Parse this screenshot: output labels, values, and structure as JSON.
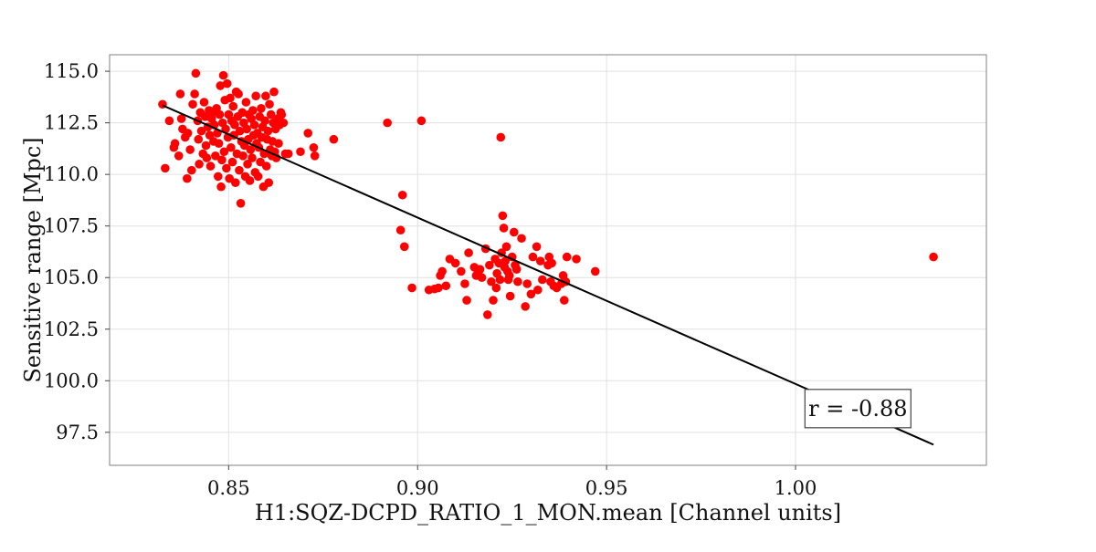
{
  "chart_data": {
    "type": "scatter",
    "title": "",
    "xlabel": "H1:SQZ-DCPD_RATIO_1_MON.mean [Channel units]",
    "ylabel": "Sensitive range [Mpc]",
    "xlim": [
      0.8185,
      1.0505
    ],
    "ylim": [
      95.9,
      115.8
    ],
    "x_ticks": [
      0.85,
      0.9,
      0.95,
      1.0
    ],
    "x_tick_labels": [
      "0.85",
      "0.90",
      "0.95",
      "1.00"
    ],
    "y_ticks": [
      97.5,
      100.0,
      102.5,
      105.0,
      107.5,
      110.0,
      112.5,
      115.0
    ],
    "y_tick_labels": [
      "97.5",
      "100.0",
      "102.5",
      "105.0",
      "107.5",
      "110.0",
      "112.5",
      "115.0"
    ],
    "grid": true,
    "point_color": "#ff0000",
    "fit_color": "#000000",
    "fit_line": {
      "x": [
        0.8325,
        1.0365
      ],
      "y": [
        113.35,
        96.9
      ]
    },
    "annotation": {
      "text": "r = -0.88",
      "x": 1.0165,
      "y": 98.65
    },
    "series": [
      {
        "points": [
          [
            0.8325,
            113.4
          ],
          [
            0.8332,
            110.3
          ],
          [
            0.8343,
            112.6
          ],
          [
            0.8355,
            111.3
          ],
          [
            0.8358,
            111.5
          ],
          [
            0.8368,
            110.9
          ],
          [
            0.8372,
            113.9
          ],
          [
            0.8375,
            112.7
          ],
          [
            0.8378,
            112.2
          ],
          [
            0.8385,
            111.8
          ],
          [
            0.839,
            109.8
          ],
          [
            0.8392,
            112.0
          ],
          [
            0.8398,
            111.2
          ],
          [
            0.8402,
            110.2
          ],
          [
            0.8405,
            113.4
          ],
          [
            0.841,
            113.9
          ],
          [
            0.8413,
            114.9
          ],
          [
            0.8418,
            112.6
          ],
          [
            0.842,
            111.7
          ],
          [
            0.8422,
            110.5
          ],
          [
            0.8425,
            113.0
          ],
          [
            0.8428,
            112.1
          ],
          [
            0.8432,
            111.0
          ],
          [
            0.8435,
            113.5
          ],
          [
            0.8438,
            112.8
          ],
          [
            0.844,
            111.4
          ],
          [
            0.8442,
            110.8
          ],
          [
            0.8445,
            112.3
          ],
          [
            0.8448,
            113.1
          ],
          [
            0.845,
            111.9
          ],
          [
            0.8452,
            110.4
          ],
          [
            0.8455,
            112.7
          ],
          [
            0.8458,
            113.0
          ],
          [
            0.846,
            111.6
          ],
          [
            0.8462,
            112.4
          ],
          [
            0.8465,
            110.9
          ],
          [
            0.8468,
            113.2
          ],
          [
            0.847,
            112.0
          ],
          [
            0.8472,
            109.9
          ],
          [
            0.8474,
            111.5
          ],
          [
            0.8476,
            112.9
          ],
          [
            0.8478,
            114.3
          ],
          [
            0.848,
            109.4
          ],
          [
            0.8482,
            110.7
          ],
          [
            0.8484,
            112.5
          ],
          [
            0.8486,
            114.8
          ],
          [
            0.8488,
            111.1
          ],
          [
            0.849,
            113.6
          ],
          [
            0.8492,
            112.2
          ],
          [
            0.8494,
            110.3
          ],
          [
            0.8496,
            114.4
          ],
          [
            0.8498,
            111.8
          ],
          [
            0.85,
            112.9
          ],
          [
            0.8502,
            109.8
          ],
          [
            0.8504,
            113.7
          ],
          [
            0.8506,
            111.3
          ],
          [
            0.8508,
            112.6
          ],
          [
            0.851,
            110.6
          ],
          [
            0.8512,
            113.3
          ],
          [
            0.8514,
            111.9
          ],
          [
            0.8516,
            112.4
          ],
          [
            0.8518,
            109.6
          ],
          [
            0.852,
            114.0
          ],
          [
            0.8522,
            111.0
          ],
          [
            0.8524,
            112.8
          ],
          [
            0.8526,
            113.9
          ],
          [
            0.8528,
            110.2
          ],
          [
            0.853,
            112.1
          ],
          [
            0.8532,
            108.6
          ],
          [
            0.8534,
            111.6
          ],
          [
            0.8536,
            113.0
          ],
          [
            0.8538,
            110.9
          ],
          [
            0.854,
            112.5
          ],
          [
            0.8542,
            111.4
          ],
          [
            0.8544,
            109.9
          ],
          [
            0.8546,
            113.5
          ],
          [
            0.8548,
            112.2
          ],
          [
            0.855,
            110.5
          ],
          [
            0.8552,
            111.7
          ],
          [
            0.8554,
            112.9
          ],
          [
            0.8556,
            109.7
          ],
          [
            0.8558,
            111.2
          ],
          [
            0.856,
            112.7
          ],
          [
            0.8562,
            110.8
          ],
          [
            0.8564,
            113.1
          ],
          [
            0.8566,
            111.9
          ],
          [
            0.8568,
            112.4
          ],
          [
            0.857,
            110.1
          ],
          [
            0.8572,
            113.8
          ],
          [
            0.8574,
            111.5
          ],
          [
            0.8576,
            112.0
          ],
          [
            0.8578,
            109.9
          ],
          [
            0.858,
            111.3
          ],
          [
            0.8582,
            112.8
          ],
          [
            0.8584,
            110.6
          ],
          [
            0.8586,
            113.2
          ],
          [
            0.8588,
            111.8
          ],
          [
            0.859,
            112.3
          ],
          [
            0.8592,
            109.4
          ],
          [
            0.8594,
            111.0
          ],
          [
            0.8596,
            112.6
          ],
          [
            0.8598,
            113.8
          ],
          [
            0.86,
            110.4
          ],
          [
            0.8602,
            111.7
          ],
          [
            0.8604,
            112.1
          ],
          [
            0.8606,
            109.6
          ],
          [
            0.8608,
            113.4
          ],
          [
            0.861,
            111.2
          ],
          [
            0.8612,
            112.9
          ],
          [
            0.8614,
            110.9
          ],
          [
            0.8616,
            111.6
          ],
          [
            0.8618,
            112.5
          ],
          [
            0.862,
            114.0
          ],
          [
            0.8622,
            111.1
          ],
          [
            0.8624,
            112.2
          ],
          [
            0.8626,
            110.8
          ],
          [
            0.863,
            112.7
          ],
          [
            0.8632,
            111.5
          ],
          [
            0.8635,
            112.4
          ],
          [
            0.8638,
            113.0
          ],
          [
            0.864,
            112.9
          ],
          [
            0.8645,
            112.5
          ],
          [
            0.865,
            111.0
          ],
          [
            0.8658,
            111.0
          ],
          [
            0.869,
            111.1
          ],
          [
            0.871,
            112.0
          ],
          [
            0.8725,
            111.3
          ],
          [
            0.8728,
            110.9
          ],
          [
            0.8778,
            111.7
          ],
          [
            0.892,
            112.5
          ],
          [
            0.901,
            112.6
          ],
          [
            0.896,
            109.0
          ],
          [
            0.8955,
            107.3
          ],
          [
            0.8965,
            106.5
          ],
          [
            0.8985,
            104.5
          ],
          [
            0.903,
            104.4
          ],
          [
            0.9045,
            104.45
          ],
          [
            0.9055,
            104.5
          ],
          [
            0.906,
            105.1
          ],
          [
            0.9065,
            105.3
          ],
          [
            0.9075,
            104.6
          ],
          [
            0.9085,
            105.9
          ],
          [
            0.91,
            105.7
          ],
          [
            0.9115,
            105.3
          ],
          [
            0.9125,
            104.7
          ],
          [
            0.913,
            103.9
          ],
          [
            0.9135,
            106.2
          ],
          [
            0.915,
            105.5
          ],
          [
            0.9155,
            105.1
          ],
          [
            0.916,
            105.2
          ],
          [
            0.9165,
            105.4
          ],
          [
            0.917,
            105.0
          ],
          [
            0.918,
            106.4
          ],
          [
            0.9185,
            103.2
          ],
          [
            0.919,
            105.6
          ],
          [
            0.9195,
            104.8
          ],
          [
            0.92,
            103.9
          ],
          [
            0.9205,
            105.9
          ],
          [
            0.9208,
            104.5
          ],
          [
            0.921,
            105.2
          ],
          [
            0.9215,
            105.7
          ],
          [
            0.9218,
            104.9
          ],
          [
            0.922,
            111.8
          ],
          [
            0.9222,
            106.2
          ],
          [
            0.9225,
            108.0
          ],
          [
            0.9228,
            107.4
          ],
          [
            0.923,
            105.5
          ],
          [
            0.9232,
            105.8
          ],
          [
            0.9235,
            106.5
          ],
          [
            0.9238,
            105.3
          ],
          [
            0.924,
            104.9
          ],
          [
            0.9243,
            105.1
          ],
          [
            0.9245,
            104.1
          ],
          [
            0.925,
            106.0
          ],
          [
            0.9255,
            107.2
          ],
          [
            0.9258,
            105.6
          ],
          [
            0.9262,
            105.4
          ],
          [
            0.9265,
            104.8
          ],
          [
            0.9275,
            106.9
          ],
          [
            0.9285,
            103.6
          ],
          [
            0.929,
            104.7
          ],
          [
            0.93,
            104.2
          ],
          [
            0.9305,
            106.0
          ],
          [
            0.9315,
            106.5
          ],
          [
            0.9318,
            104.4
          ],
          [
            0.9325,
            105.8
          ],
          [
            0.933,
            104.9
          ],
          [
            0.9345,
            105.6
          ],
          [
            0.9348,
            106.0
          ],
          [
            0.9352,
            104.8
          ],
          [
            0.9355,
            105.7
          ],
          [
            0.936,
            104.6
          ],
          [
            0.9368,
            104.5
          ],
          [
            0.938,
            104.7
          ],
          [
            0.9385,
            105.1
          ],
          [
            0.9388,
            103.9
          ],
          [
            0.9392,
            104.8
          ],
          [
            0.9395,
            106.0
          ],
          [
            0.942,
            105.9
          ],
          [
            0.947,
            105.3
          ],
          [
            1.0365,
            106.0
          ]
        ]
      }
    ]
  }
}
